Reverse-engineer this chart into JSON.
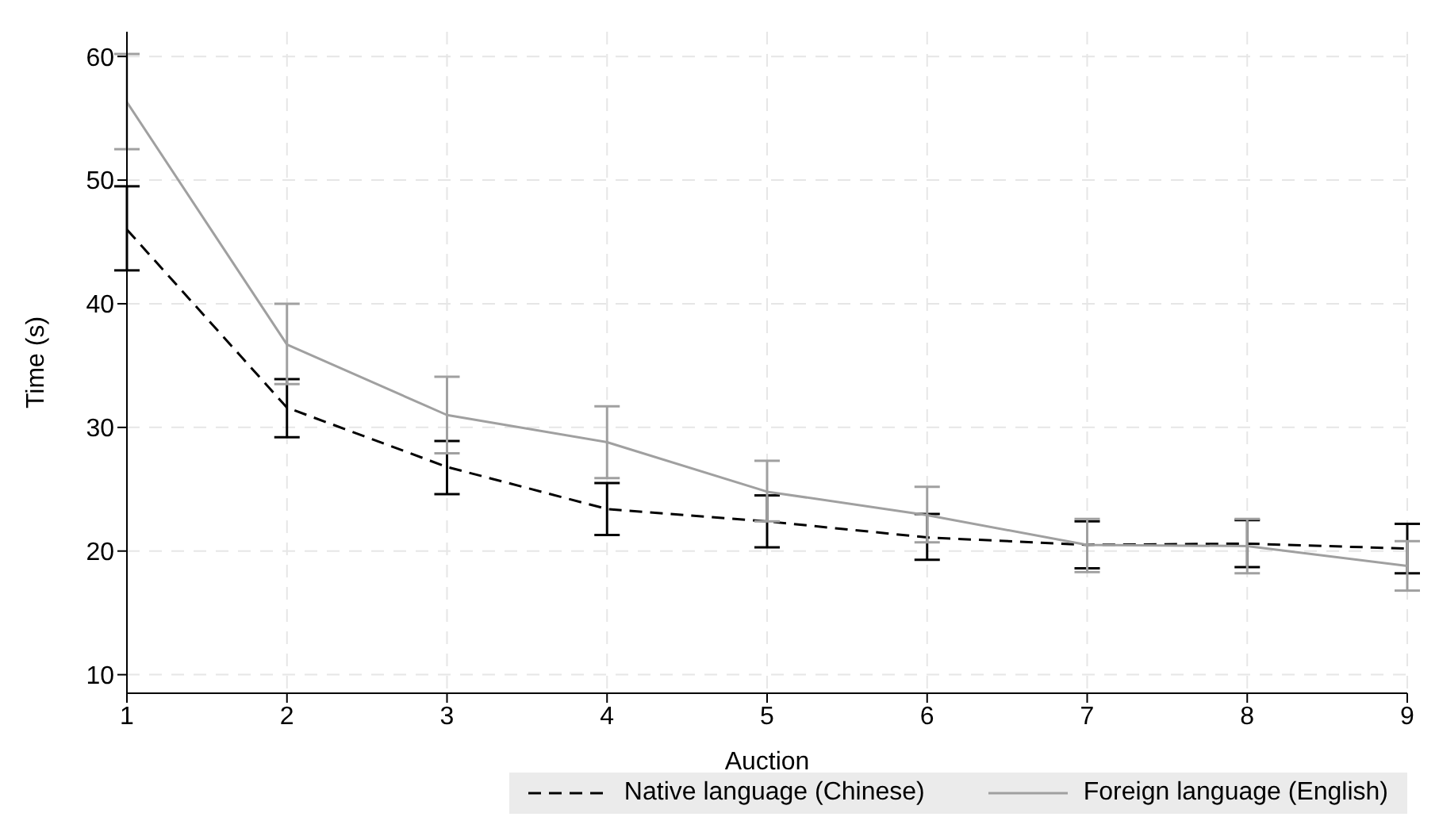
{
  "chart_data": {
    "type": "line",
    "xlabel": "Auction",
    "ylabel": "Time (s)",
    "x": [
      1,
      2,
      3,
      4,
      5,
      6,
      7,
      8,
      9
    ],
    "xlim": [
      1,
      9
    ],
    "xticks": [
      1,
      2,
      3,
      4,
      5,
      6,
      7,
      8,
      9
    ],
    "ylim": [
      8.5,
      62
    ],
    "yticks": [
      10,
      20,
      30,
      40,
      50,
      60
    ],
    "grid": true,
    "legend": "bottom right",
    "marker": "none",
    "series": [
      {
        "name": "Native language (Chinese)",
        "color": "#000000",
        "line_style": "dashed",
        "values": [
          46.0,
          31.6,
          26.8,
          23.4,
          22.4,
          21.1,
          20.5,
          20.6,
          20.2
        ],
        "errors": [
          [
            42.7,
            49.5
          ],
          [
            29.2,
            33.9
          ],
          [
            24.6,
            28.9
          ],
          [
            21.3,
            25.5
          ],
          [
            20.3,
            24.5
          ],
          [
            19.3,
            23.0
          ],
          [
            18.6,
            22.4
          ],
          [
            18.7,
            22.5
          ],
          [
            18.2,
            22.2
          ]
        ]
      },
      {
        "name": "Foreign language (English)",
        "color": "#a0a0a0",
        "line_style": "solid",
        "values": [
          56.3,
          36.7,
          31.0,
          28.8,
          24.8,
          22.9,
          20.5,
          20.4,
          18.8
        ],
        "errors": [
          [
            52.5,
            60.2
          ],
          [
            33.5,
            40.0
          ],
          [
            27.9,
            34.1
          ],
          [
            25.9,
            31.7
          ],
          [
            22.4,
            27.3
          ],
          [
            20.7,
            25.2
          ],
          [
            18.3,
            22.6
          ],
          [
            18.2,
            22.6
          ],
          [
            16.8,
            20.8
          ]
        ]
      }
    ]
  }
}
